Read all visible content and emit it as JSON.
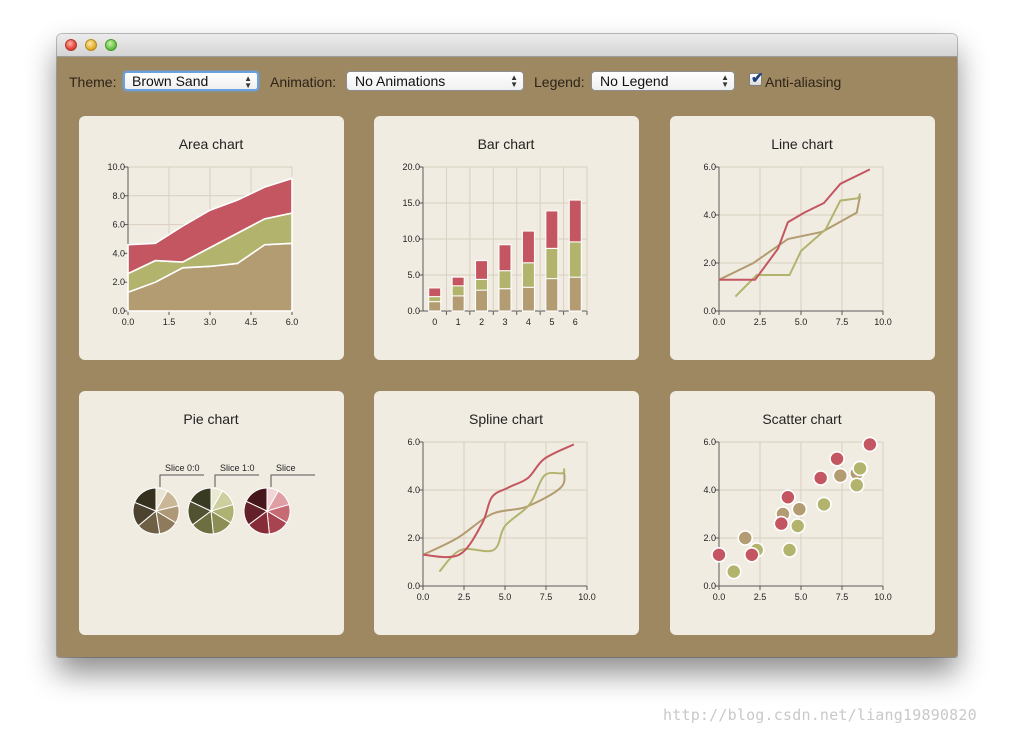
{
  "window": {
    "title": ""
  },
  "toolbar": {
    "theme_label": "Theme:",
    "theme_value": "Brown Sand",
    "animation_label": "Animation:",
    "animation_value": "No Animations",
    "legend_label": "Legend:",
    "legend_value": "No Legend",
    "antialiasing_label": "Anti-aliasing",
    "antialiasing_checked": true
  },
  "colors": {
    "background": "#9e8862",
    "panel": "#f1ece2",
    "series": [
      "#b39b72",
      "#b2b46e",
      "#c35660"
    ]
  },
  "charts": [
    {
      "type": "area",
      "title": "Area chart",
      "xticks": [
        "0.0",
        "1.5",
        "3.0",
        "4.5",
        "6.0"
      ],
      "yticks": [
        "0.0",
        "2.0",
        "4.0",
        "6.0",
        "8.0",
        "10.0"
      ],
      "xlim": [
        0,
        6
      ],
      "ylim": [
        0,
        10
      ],
      "x": [
        0,
        1,
        2,
        3,
        4,
        5,
        6
      ],
      "series": [
        {
          "values": [
            1.3,
            2.0,
            3.0,
            3.1,
            3.3,
            4.6,
            4.7
          ]
        },
        {
          "values": [
            1.3,
            1.5,
            0.4,
            1.3,
            2.1,
            1.8,
            2.1
          ]
        },
        {
          "values": [
            2.0,
            1.2,
            2.5,
            2.6,
            2.3,
            2.2,
            2.4
          ]
        }
      ]
    },
    {
      "type": "bar",
      "title": "Bar chart",
      "categories": [
        "0",
        "1",
        "2",
        "3",
        "4",
        "5",
        "6"
      ],
      "yticks": [
        "0.0",
        "5.0",
        "10.0",
        "15.0",
        "20.0"
      ],
      "ylim": [
        0,
        20
      ],
      "series": [
        {
          "values": [
            1.3,
            2.1,
            2.9,
            3.1,
            3.3,
            4.5,
            4.7
          ]
        },
        {
          "values": [
            0.7,
            1.4,
            1.5,
            2.5,
            3.4,
            4.2,
            4.9
          ]
        },
        {
          "values": [
            1.2,
            1.2,
            2.6,
            3.6,
            4.4,
            5.2,
            5.8
          ]
        }
      ]
    },
    {
      "type": "line",
      "title": "Line chart",
      "xticks": [
        "0.0",
        "2.5",
        "5.0",
        "7.5",
        "10.0"
      ],
      "yticks": [
        "0.0",
        "2.0",
        "4.0",
        "6.0"
      ],
      "xlim": [
        0,
        10
      ],
      "ylim": [
        0,
        6
      ],
      "series": [
        {
          "points": [
            [
              0,
              1.3
            ],
            [
              2.1,
              2.0
            ],
            [
              4.2,
              3.0
            ],
            [
              6.3,
              3.3
            ],
            [
              8.4,
              4.1
            ],
            [
              8.6,
              4.8
            ]
          ]
        },
        {
          "points": [
            [
              1.0,
              0.6
            ],
            [
              2.3,
              1.5
            ],
            [
              4.3,
              1.5
            ],
            [
              5.0,
              2.5
            ],
            [
              6.5,
              3.4
            ],
            [
              7.4,
              4.6
            ],
            [
              8.5,
              4.7
            ],
            [
              8.6,
              4.9
            ]
          ]
        },
        {
          "points": [
            [
              0,
              1.3
            ],
            [
              2.2,
              1.3
            ],
            [
              3.6,
              2.6
            ],
            [
              4.2,
              3.7
            ],
            [
              5.2,
              4.1
            ],
            [
              6.4,
              4.5
            ],
            [
              7.4,
              5.3
            ],
            [
              9.2,
              5.9
            ]
          ]
        }
      ]
    },
    {
      "type": "pie",
      "title": "Pie chart",
      "pies": [
        {
          "label": "Slice 0:0",
          "colors": [
            "#e9e4d4",
            "#c9b797",
            "#ad9878",
            "#8f7b5b",
            "#6f5f45",
            "#4d4230",
            "#36301f"
          ],
          "values": [
            1,
            1.6,
            1.5,
            1.7,
            2.0,
            2.1,
            2.3
          ]
        },
        {
          "label": "Slice 1:0",
          "colors": [
            "#eaead2",
            "#cdcf9f",
            "#aeb172",
            "#8c8e55",
            "#6d6f41",
            "#505231",
            "#393a22"
          ],
          "values": [
            1,
            1.5,
            1.6,
            1.8,
            2.0,
            2.1,
            2.2
          ]
        },
        {
          "label": "Slice",
          "colors": [
            "#f0d4d6",
            "#de9ea4",
            "#c66a74",
            "#a84451",
            "#852c38",
            "#642028",
            "#45161c"
          ],
          "values": [
            1,
            1.5,
            1.6,
            1.8,
            2.0,
            2.1,
            2.2
          ]
        }
      ]
    },
    {
      "type": "spline",
      "title": "Spline chart",
      "xticks": [
        "0.0",
        "2.5",
        "5.0",
        "7.5",
        "10.0"
      ],
      "yticks": [
        "0.0",
        "2.0",
        "4.0",
        "6.0"
      ],
      "xlim": [
        0,
        10
      ],
      "ylim": [
        0,
        6
      ],
      "series": [
        {
          "points": [
            [
              0,
              1.3
            ],
            [
              2.1,
              2.0
            ],
            [
              4.2,
              3.0
            ],
            [
              6.3,
              3.3
            ],
            [
              8.4,
              4.1
            ],
            [
              8.6,
              4.8
            ]
          ]
        },
        {
          "points": [
            [
              1.0,
              0.6
            ],
            [
              2.3,
              1.5
            ],
            [
              4.3,
              1.5
            ],
            [
              5.0,
              2.5
            ],
            [
              6.5,
              3.4
            ],
            [
              7.4,
              4.6
            ],
            [
              8.5,
              4.7
            ],
            [
              8.6,
              4.9
            ]
          ]
        },
        {
          "points": [
            [
              0,
              1.3
            ],
            [
              2.2,
              1.3
            ],
            [
              3.6,
              2.6
            ],
            [
              4.2,
              3.7
            ],
            [
              5.2,
              4.1
            ],
            [
              6.4,
              4.5
            ],
            [
              7.4,
              5.3
            ],
            [
              9.2,
              5.9
            ]
          ]
        }
      ]
    },
    {
      "type": "scatter",
      "title": "Scatter chart",
      "xticks": [
        "0.0",
        "2.5",
        "5.0",
        "7.5",
        "10.0"
      ],
      "yticks": [
        "0.0",
        "2.0",
        "4.0",
        "6.0"
      ],
      "xlim": [
        0,
        10
      ],
      "ylim": [
        0,
        6
      ],
      "series": [
        {
          "points": [
            [
              1.6,
              2.0
            ],
            [
              3.9,
              3.0
            ],
            [
              4.9,
              3.2
            ],
            [
              7.4,
              4.6
            ],
            [
              8.4,
              4.7
            ],
            [
              8.6,
              4.9
            ]
          ]
        },
        {
          "points": [
            [
              0.9,
              0.6
            ],
            [
              2.3,
              1.5
            ],
            [
              4.3,
              1.5
            ],
            [
              4.8,
              2.5
            ],
            [
              6.4,
              3.4
            ],
            [
              8.4,
              4.2
            ],
            [
              8.6,
              4.9
            ]
          ]
        },
        {
          "points": [
            [
              0,
              1.3
            ],
            [
              2.0,
              1.3
            ],
            [
              3.8,
              2.6
            ],
            [
              4.2,
              3.7
            ],
            [
              6.2,
              4.5
            ],
            [
              7.2,
              5.3
            ],
            [
              9.2,
              5.9
            ]
          ]
        }
      ]
    }
  ],
  "watermark": "http://blog.csdn.net/liang19890820"
}
